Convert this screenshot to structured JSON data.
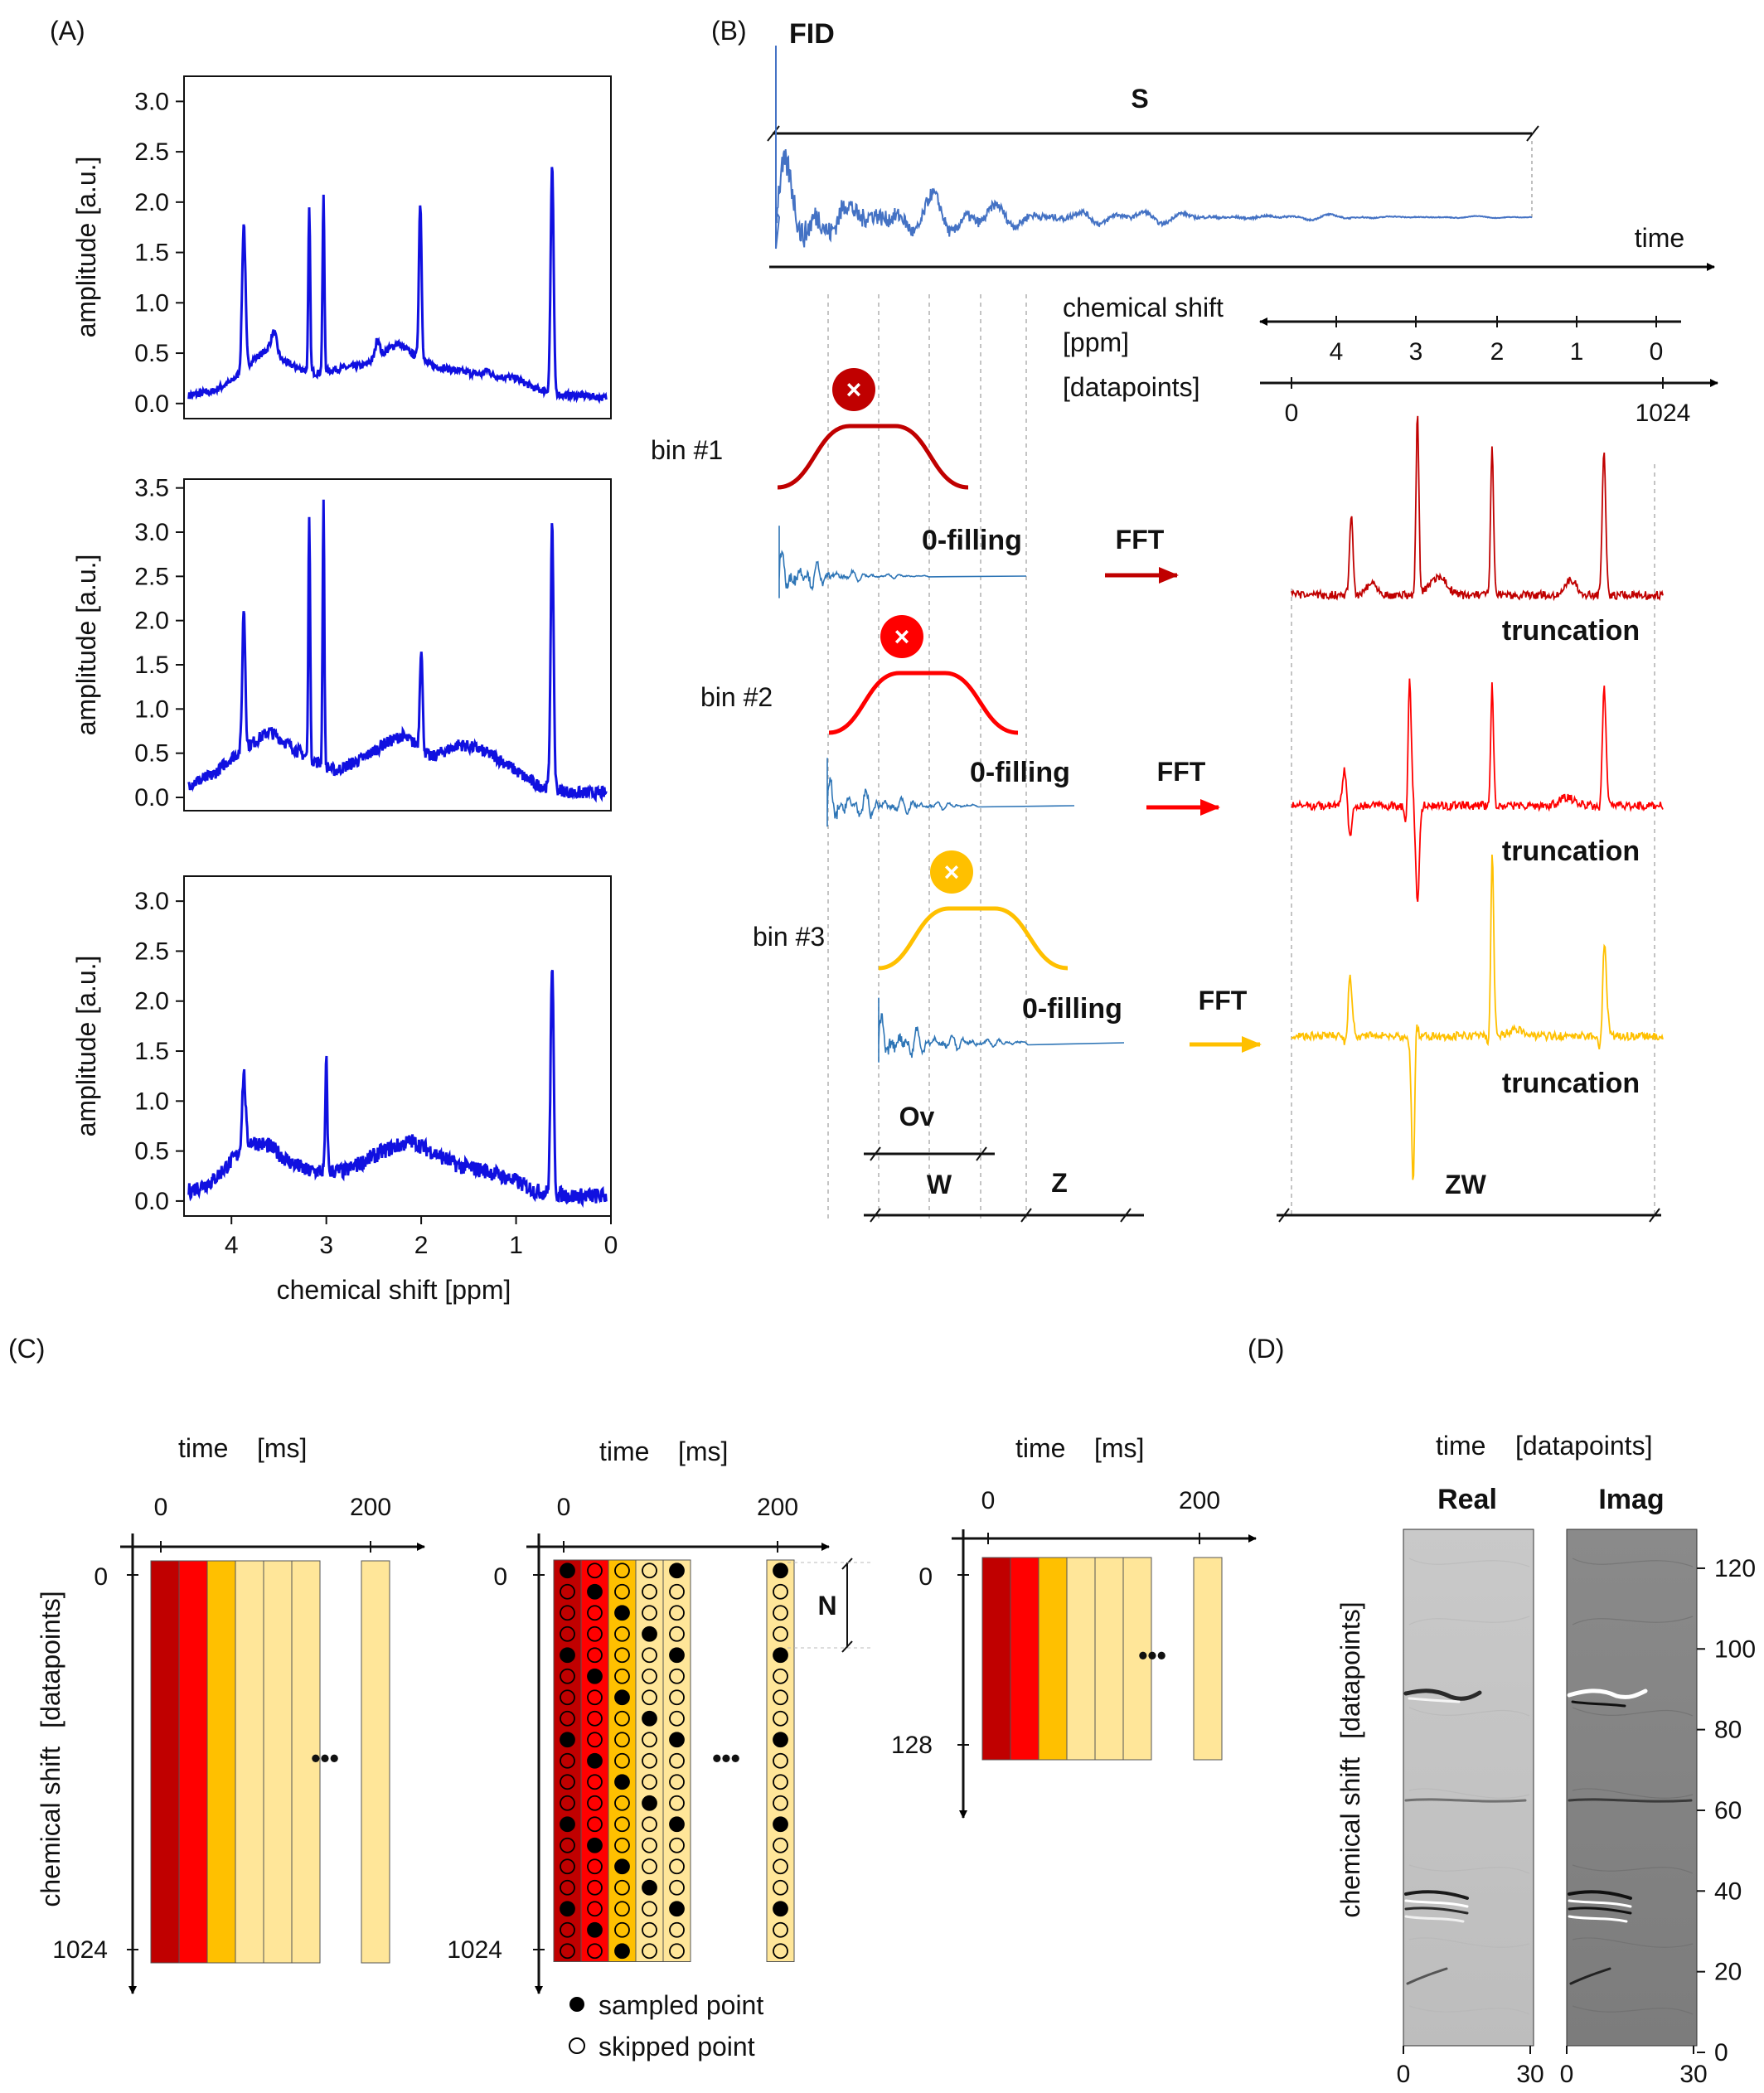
{
  "panel_labels": {
    "A": "(A)",
    "B": "(B)",
    "C": "(C)",
    "D": "(D)"
  },
  "panel_a": {
    "ylabel": "amplitude [a.u.]",
    "xlabel": "chemical shift [ppm]",
    "xticks": [
      "4",
      "3",
      "2",
      "1",
      "0"
    ],
    "line_color": "#1010e0"
  },
  "chart_data": [
    {
      "type": "line",
      "xlabel": "",
      "ylabel": "amplitude [a.u.]",
      "xlim": [
        4.5,
        0
      ],
      "ylim": [
        -0.15,
        3.25
      ],
      "yticks": [
        "0.0",
        "0.5",
        "1.0",
        "1.5",
        "2.0",
        "2.5",
        "3.0"
      ],
      "baseline": [
        [
          4.45,
          0.08
        ],
        [
          4.2,
          0.12
        ],
        [
          4.0,
          0.22
        ],
        [
          3.75,
          0.45
        ],
        [
          3.6,
          0.55
        ],
        [
          3.45,
          0.42
        ],
        [
          3.3,
          0.35
        ],
        [
          3.1,
          0.3
        ],
        [
          2.85,
          0.35
        ],
        [
          2.6,
          0.38
        ],
        [
          2.4,
          0.5
        ],
        [
          2.25,
          0.6
        ],
        [
          2.1,
          0.5
        ],
        [
          1.9,
          0.38
        ],
        [
          1.6,
          0.32
        ],
        [
          1.3,
          0.28
        ],
        [
          1.0,
          0.25
        ],
        [
          0.8,
          0.15
        ],
        [
          0.5,
          0.08
        ],
        [
          0.3,
          0.08
        ],
        [
          0.0,
          0.05
        ]
      ],
      "peaks": [
        [
          3.87,
          1.45,
          0.025
        ],
        [
          3.55,
          0.2,
          0.04
        ],
        [
          3.18,
          1.6,
          0.014
        ],
        [
          3.03,
          1.75,
          0.014
        ],
        [
          2.46,
          0.18,
          0.03
        ],
        [
          2.01,
          1.55,
          0.02
        ],
        [
          1.3,
          0.05,
          0.04
        ],
        [
          0.62,
          2.25,
          0.022
        ]
      ],
      "noise": 0.035
    },
    {
      "type": "line",
      "xlabel": "",
      "ylabel": "amplitude [a.u.]",
      "xlim": [
        4.5,
        0
      ],
      "ylim": [
        -0.15,
        3.6
      ],
      "yticks": [
        "0.0",
        "0.5",
        "1.0",
        "1.5",
        "2.0",
        "2.5",
        "3.0",
        "3.5"
      ],
      "baseline": [
        [
          4.45,
          0.15
        ],
        [
          4.2,
          0.25
        ],
        [
          4.0,
          0.45
        ],
        [
          3.8,
          0.6
        ],
        [
          3.6,
          0.75
        ],
        [
          3.4,
          0.6
        ],
        [
          3.2,
          0.45
        ],
        [
          2.9,
          0.3
        ],
        [
          2.6,
          0.45
        ],
        [
          2.4,
          0.6
        ],
        [
          2.2,
          0.7
        ],
        [
          2.05,
          0.6
        ],
        [
          1.9,
          0.45
        ],
        [
          1.6,
          0.6
        ],
        [
          1.4,
          0.55
        ],
        [
          1.2,
          0.45
        ],
        [
          1.0,
          0.3
        ],
        [
          0.8,
          0.15
        ],
        [
          0.4,
          0.05
        ],
        [
          0.0,
          0.05
        ]
      ],
      "peaks": [
        [
          3.87,
          1.6,
          0.022
        ],
        [
          3.18,
          2.8,
          0.013
        ],
        [
          3.03,
          3.0,
          0.013
        ],
        [
          2.0,
          1.15,
          0.02
        ],
        [
          0.62,
          2.95,
          0.022
        ]
      ],
      "noise": 0.07
    },
    {
      "type": "line",
      "xlabel": "chemical shift [ppm]",
      "ylabel": "amplitude [a.u.]",
      "xlim": [
        4.5,
        0
      ],
      "ylim": [
        -0.15,
        3.25
      ],
      "yticks": [
        "0.0",
        "0.5",
        "1.0",
        "1.5",
        "2.0",
        "2.5",
        "3.0"
      ],
      "baseline": [
        [
          4.45,
          0.1
        ],
        [
          4.2,
          0.2
        ],
        [
          4.0,
          0.4
        ],
        [
          3.8,
          0.6
        ],
        [
          3.6,
          0.55
        ],
        [
          3.4,
          0.4
        ],
        [
          3.2,
          0.3
        ],
        [
          3.0,
          0.3
        ],
        [
          2.8,
          0.3
        ],
        [
          2.6,
          0.4
        ],
        [
          2.4,
          0.5
        ],
        [
          2.1,
          0.6
        ],
        [
          1.9,
          0.5
        ],
        [
          1.6,
          0.35
        ],
        [
          1.3,
          0.3
        ],
        [
          1.0,
          0.2
        ],
        [
          0.8,
          0.1
        ],
        [
          0.4,
          0.05
        ],
        [
          0.0,
          0.05
        ]
      ],
      "peaks": [
        [
          3.87,
          0.75,
          0.025
        ],
        [
          3.0,
          1.1,
          0.015
        ],
        [
          0.62,
          2.3,
          0.022
        ]
      ],
      "noise": 0.08
    }
  ],
  "panel_b": {
    "fid_label": "FID",
    "s_label": "S",
    "time_label": "time",
    "chem_shift_label": "chemical shift",
    "ppm_label": "[ppm]",
    "datapoints_label": "[datapoints]",
    "ppm_ticks": [
      "4",
      "3",
      "2",
      "1",
      "0"
    ],
    "dp_ticks": [
      "0",
      "1024"
    ],
    "bins": [
      {
        "name": "bin #1",
        "color": "#c00000",
        "fft": "FFT",
        "fill": "0-filling",
        "trunc": "truncation"
      },
      {
        "name": "bin #2",
        "color": "#ff0000",
        "fft": "FFT",
        "fill": "0-filling",
        "trunc": "truncation"
      },
      {
        "name": "bin #3",
        "color": "#ffc000",
        "fft": "FFT",
        "fill": "0-filling",
        "trunc": "truncation"
      }
    ],
    "ov_label": "Ov",
    "w_label": "W",
    "z_label": "Z",
    "zw_label": "ZW",
    "fid_color": "#4472c4"
  },
  "panel_c": {
    "time_label": "time",
    "ms_label": "[ms]",
    "x_ticks": [
      "0",
      "200"
    ],
    "chem_shift_label": "chemical shift",
    "datapoints_label": "[datapoints]",
    "y_ticks_full": [
      "0",
      "1024"
    ],
    "y_ticks_small": [
      "0",
      "128"
    ],
    "n_label": "N",
    "ellipsis": "•••",
    "legend_sampled": "sampled point",
    "legend_skipped": "skipped point",
    "column_colors": [
      "#c00000",
      "#ff0000",
      "#ffc000",
      "#ffe699",
      "#ffe699",
      "#ffe699"
    ]
  },
  "panel_d": {
    "time_label": "time",
    "datapoints_label": "[datapoints]",
    "real_label": "Real",
    "imag_label": "Imag",
    "chem_shift_label": "chemical shift",
    "y_ticks": [
      "0",
      "20",
      "40",
      "60",
      "80",
      "100",
      "120"
    ],
    "x_ticks": [
      "0",
      "30"
    ]
  }
}
